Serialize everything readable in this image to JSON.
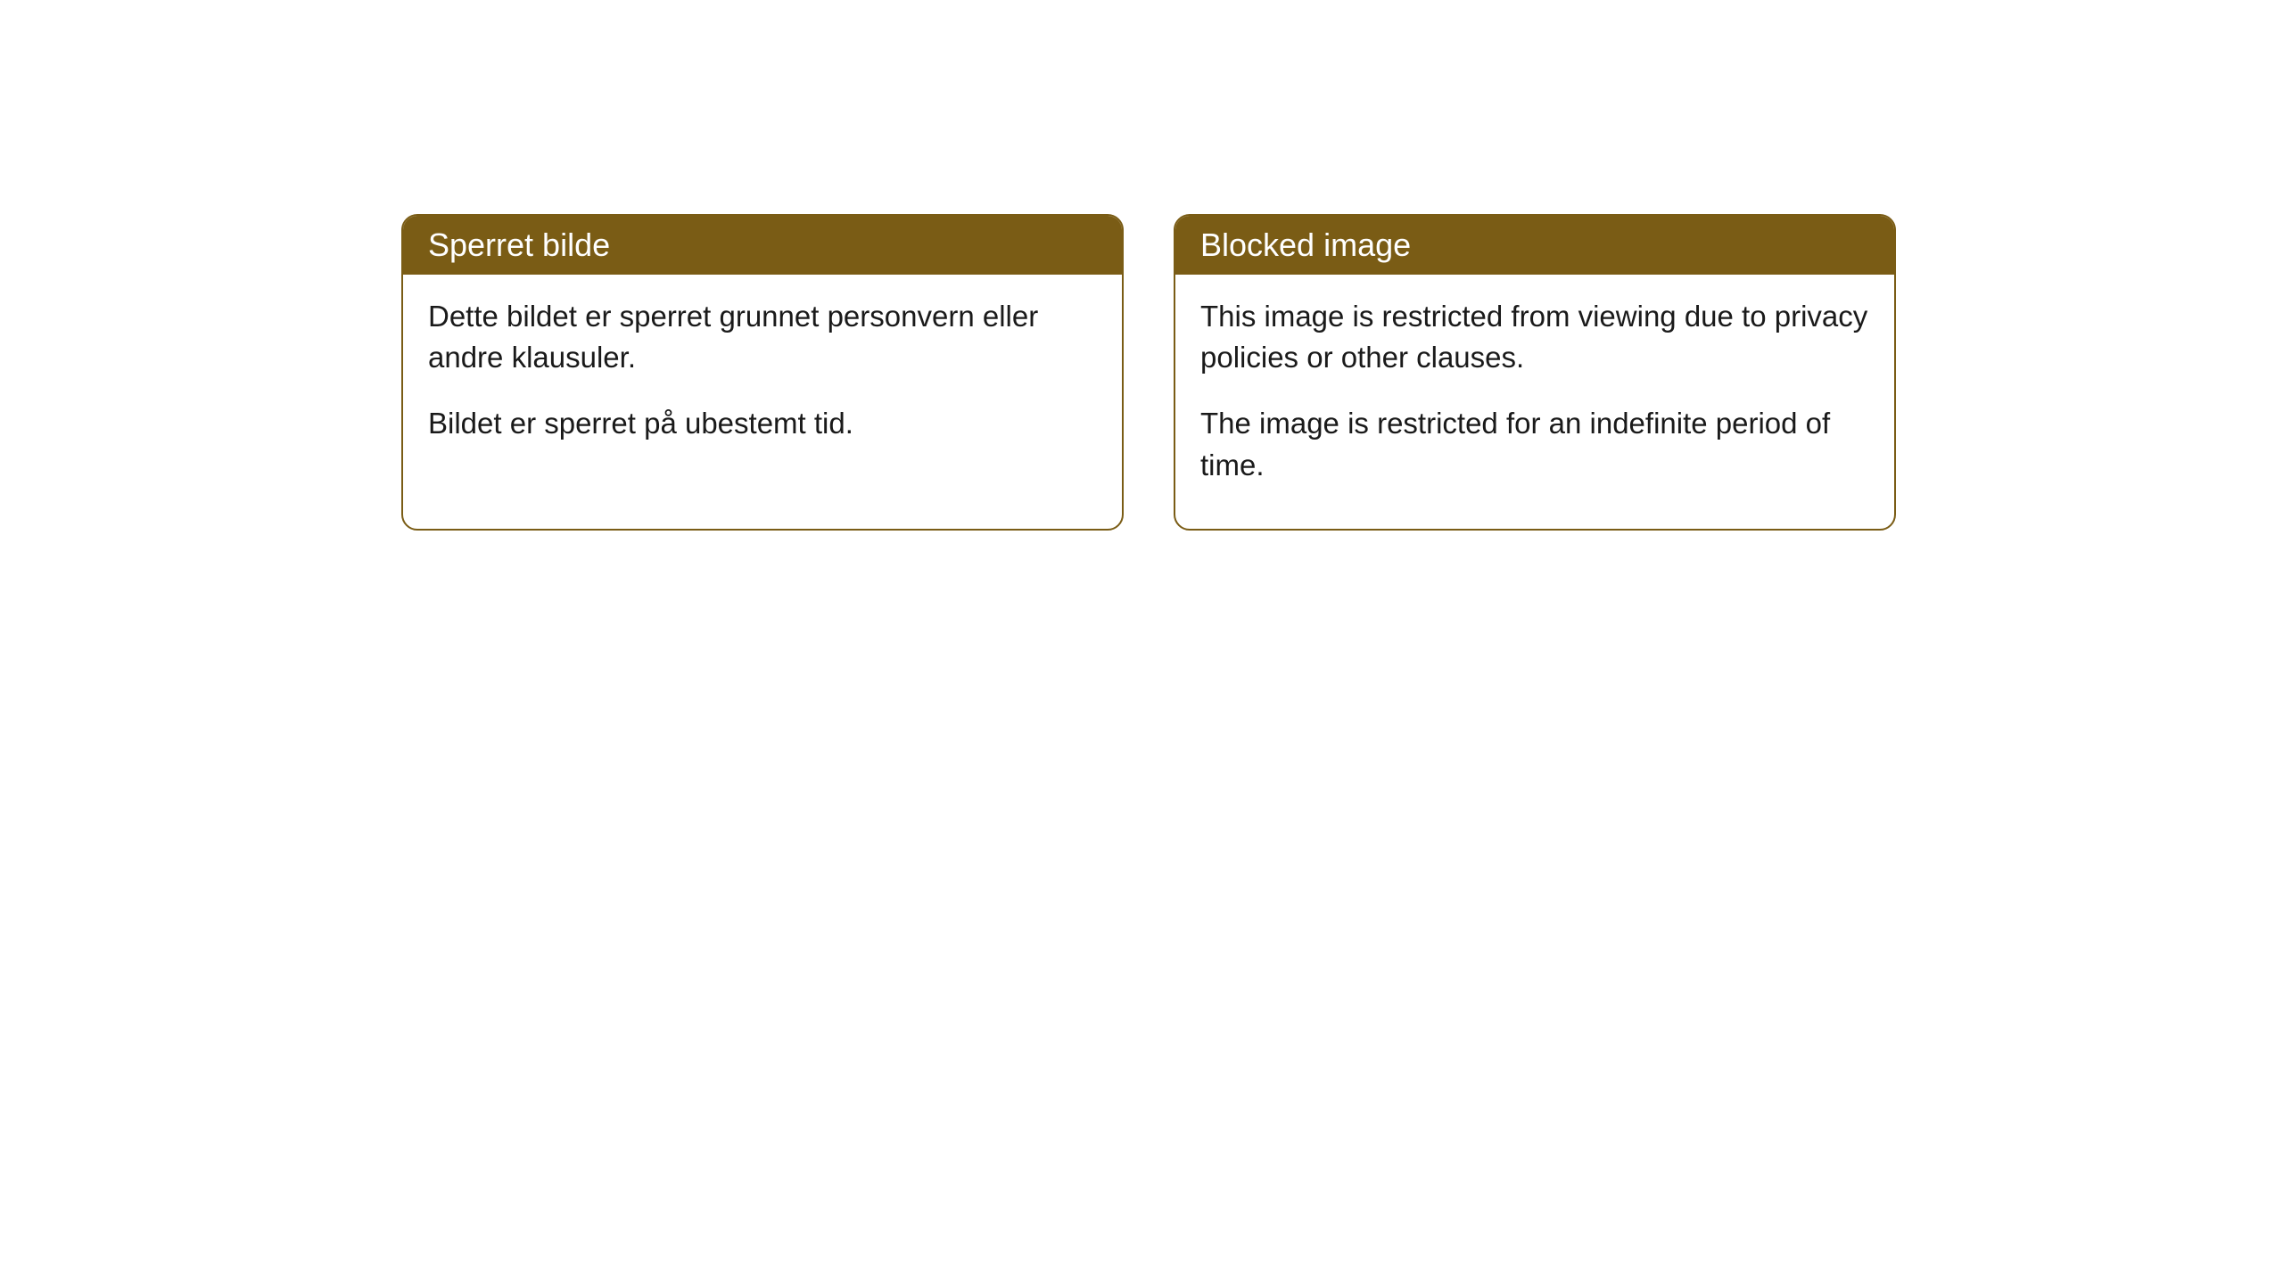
{
  "cards": [
    {
      "title": "Sperret bilde",
      "paragraph1": "Dette bildet er sperret grunnet personvern eller andre klausuler.",
      "paragraph2": "Bildet er sperret på ubestemt tid."
    },
    {
      "title": "Blocked image",
      "paragraph1": "This image is restricted from viewing due to privacy policies or other clauses.",
      "paragraph2": "The image is restricted for an indefinite period of time."
    }
  ],
  "style": {
    "header_background": "#7a5c15",
    "header_text_color": "#ffffff",
    "border_color": "#7a5c15",
    "body_background": "#ffffff",
    "body_text_color": "#1a1a1a",
    "border_radius": 18,
    "header_fontsize": 36,
    "body_fontsize": 33
  }
}
